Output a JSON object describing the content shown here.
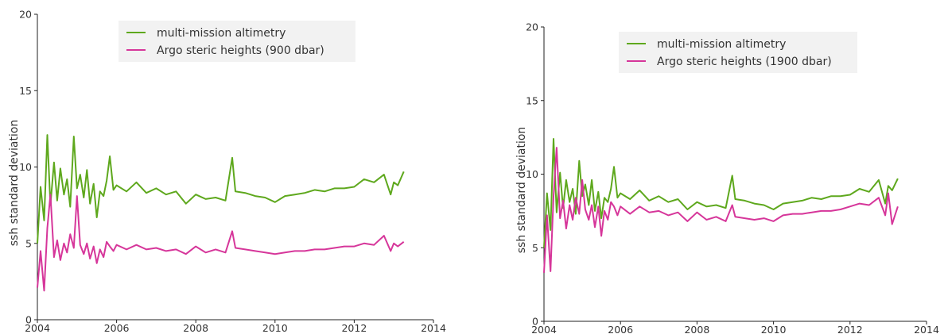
{
  "chart_data": [
    {
      "type": "line",
      "title": "",
      "xlabel": "",
      "ylabel": "ssh standard deviation",
      "xlim": [
        2004,
        2014
      ],
      "ylim": [
        0,
        20
      ],
      "xticks": [
        "2004",
        "2006",
        "2008",
        "2010",
        "2012",
        "2014"
      ],
      "yticks": [
        "0",
        "5",
        "10",
        "15",
        "20"
      ],
      "grid": false,
      "legend": "top-center",
      "series": [
        {
          "name": "multi-mission altimetry",
          "color": "#5ea81d",
          "x": [
            2004.0,
            2004.08,
            2004.17,
            2004.25,
            2004.33,
            2004.42,
            2004.5,
            2004.58,
            2004.67,
            2004.75,
            2004.83,
            2004.92,
            2005.0,
            2005.08,
            2005.17,
            2005.25,
            2005.33,
            2005.42,
            2005.5,
            2005.58,
            2005.67,
            2005.75,
            2005.83,
            2005.92,
            2006.0,
            2006.25,
            2006.5,
            2006.75,
            2007.0,
            2007.25,
            2007.5,
            2007.75,
            2008.0,
            2008.25,
            2008.5,
            2008.75,
            2008.92,
            2009.0,
            2009.25,
            2009.5,
            2009.75,
            2010.0,
            2010.25,
            2010.5,
            2010.75,
            2011.0,
            2011.25,
            2011.5,
            2011.75,
            2012.0,
            2012.25,
            2012.5,
            2012.75,
            2012.92,
            2013.0,
            2013.1,
            2013.25
          ],
          "values": [
            5.0,
            8.7,
            6.5,
            12.1,
            7.5,
            10.3,
            7.8,
            9.9,
            8.2,
            9.2,
            7.4,
            12.0,
            8.6,
            9.5,
            8.0,
            9.8,
            7.6,
            8.9,
            6.7,
            8.4,
            8.1,
            9.1,
            10.7,
            8.5,
            8.8,
            8.4,
            9.0,
            8.3,
            8.6,
            8.2,
            8.4,
            7.6,
            8.2,
            7.9,
            8.0,
            7.8,
            10.6,
            8.4,
            8.3,
            8.1,
            8.0,
            7.7,
            8.1,
            8.2,
            8.3,
            8.5,
            8.4,
            8.6,
            8.6,
            8.7,
            9.2,
            9.0,
            9.5,
            8.2,
            9.0,
            8.8,
            9.7
          ]
        },
        {
          "name": "Argo steric heights (900 dbar)",
          "color": "#d6369a",
          "x": [
            2004.0,
            2004.08,
            2004.17,
            2004.25,
            2004.33,
            2004.42,
            2004.5,
            2004.58,
            2004.67,
            2004.75,
            2004.83,
            2004.92,
            2005.0,
            2005.08,
            2005.17,
            2005.25,
            2005.33,
            2005.42,
            2005.5,
            2005.58,
            2005.67,
            2005.75,
            2005.83,
            2005.92,
            2006.0,
            2006.25,
            2006.5,
            2006.75,
            2007.0,
            2007.25,
            2007.5,
            2007.75,
            2008.0,
            2008.25,
            2008.5,
            2008.75,
            2008.92,
            2009.0,
            2009.25,
            2009.5,
            2009.75,
            2010.0,
            2010.25,
            2010.5,
            2010.75,
            2011.0,
            2011.25,
            2011.5,
            2011.75,
            2012.0,
            2012.25,
            2012.5,
            2012.75,
            2012.92,
            2013.0,
            2013.1,
            2013.25
          ],
          "values": [
            2.1,
            4.5,
            1.9,
            6.0,
            8.2,
            4.1,
            5.2,
            3.9,
            5.0,
            4.4,
            5.6,
            4.7,
            8.1,
            4.9,
            4.3,
            5.0,
            4.0,
            4.8,
            3.7,
            4.6,
            4.1,
            5.1,
            4.8,
            4.5,
            4.9,
            4.6,
            4.9,
            4.6,
            4.7,
            4.5,
            4.6,
            4.3,
            4.8,
            4.4,
            4.6,
            4.4,
            5.8,
            4.7,
            4.6,
            4.5,
            4.4,
            4.3,
            4.4,
            4.5,
            4.5,
            4.6,
            4.6,
            4.7,
            4.8,
            4.8,
            5.0,
            4.9,
            5.5,
            4.5,
            5.0,
            4.8,
            5.1
          ]
        }
      ]
    },
    {
      "type": "line",
      "title": "",
      "xlabel": "",
      "ylabel": "ssh standard deviation",
      "xlim": [
        2004,
        2014
      ],
      "ylim": [
        0,
        20
      ],
      "xticks": [
        "2004",
        "2006",
        "2008",
        "2010",
        "2012",
        "2014"
      ],
      "yticks": [
        "0",
        "5",
        "10",
        "15",
        "20"
      ],
      "grid": false,
      "legend": "top-center",
      "series": [
        {
          "name": "multi-mission altimetry",
          "color": "#5ea81d",
          "x": [
            2004.0,
            2004.08,
            2004.17,
            2004.25,
            2004.33,
            2004.42,
            2004.5,
            2004.58,
            2004.67,
            2004.75,
            2004.83,
            2004.92,
            2005.0,
            2005.08,
            2005.17,
            2005.25,
            2005.33,
            2005.42,
            2005.5,
            2005.58,
            2005.67,
            2005.75,
            2005.83,
            2005.92,
            2006.0,
            2006.25,
            2006.5,
            2006.75,
            2007.0,
            2007.25,
            2007.5,
            2007.75,
            2008.0,
            2008.25,
            2008.5,
            2008.75,
            2008.92,
            2009.0,
            2009.25,
            2009.5,
            2009.75,
            2010.0,
            2010.25,
            2010.5,
            2010.75,
            2011.0,
            2011.25,
            2011.5,
            2011.75,
            2012.0,
            2012.25,
            2012.5,
            2012.75,
            2012.92,
            2013.0,
            2013.1,
            2013.25
          ],
          "values": [
            5.0,
            8.7,
            6.2,
            12.4,
            7.4,
            10.1,
            7.7,
            9.6,
            8.1,
            9.0,
            7.3,
            10.9,
            8.5,
            9.3,
            7.9,
            9.6,
            7.5,
            8.8,
            7.0,
            8.4,
            8.1,
            9.0,
            10.5,
            8.4,
            8.7,
            8.3,
            8.9,
            8.2,
            8.5,
            8.1,
            8.3,
            7.6,
            8.1,
            7.8,
            7.9,
            7.7,
            9.9,
            8.3,
            8.2,
            8.0,
            7.9,
            7.6,
            8.0,
            8.1,
            8.2,
            8.4,
            8.3,
            8.5,
            8.5,
            8.6,
            9.0,
            8.8,
            9.6,
            8.0,
            9.2,
            8.9,
            9.7
          ]
        },
        {
          "name": "Argo steric heights (1900 dbar)",
          "color": "#d6369a",
          "x": [
            2004.0,
            2004.08,
            2004.17,
            2004.25,
            2004.33,
            2004.42,
            2004.5,
            2004.58,
            2004.67,
            2004.75,
            2004.83,
            2004.92,
            2005.0,
            2005.08,
            2005.17,
            2005.25,
            2005.33,
            2005.42,
            2005.5,
            2005.58,
            2005.67,
            2005.75,
            2005.83,
            2005.92,
            2006.0,
            2006.25,
            2006.5,
            2006.75,
            2007.0,
            2007.25,
            2007.5,
            2007.75,
            2008.0,
            2008.25,
            2008.5,
            2008.75,
            2008.92,
            2009.0,
            2009.25,
            2009.5,
            2009.75,
            2010.0,
            2010.25,
            2010.5,
            2010.75,
            2011.0,
            2011.25,
            2011.5,
            2011.75,
            2012.0,
            2012.25,
            2012.5,
            2012.75,
            2012.92,
            2013.0,
            2013.1,
            2013.25
          ],
          "values": [
            3.3,
            7.2,
            3.4,
            8.5,
            11.8,
            7.0,
            8.2,
            6.3,
            7.9,
            6.9,
            8.4,
            7.3,
            9.6,
            7.6,
            6.9,
            7.9,
            6.4,
            7.8,
            5.8,
            7.5,
            6.9,
            8.1,
            7.8,
            7.2,
            7.8,
            7.3,
            7.8,
            7.4,
            7.5,
            7.2,
            7.4,
            6.8,
            7.4,
            6.9,
            7.1,
            6.8,
            7.9,
            7.1,
            7.0,
            6.9,
            7.0,
            6.8,
            7.2,
            7.3,
            7.3,
            7.4,
            7.5,
            7.5,
            7.6,
            7.8,
            8.0,
            7.9,
            8.4,
            7.2,
            8.7,
            6.6,
            7.8
          ]
        }
      ]
    }
  ]
}
